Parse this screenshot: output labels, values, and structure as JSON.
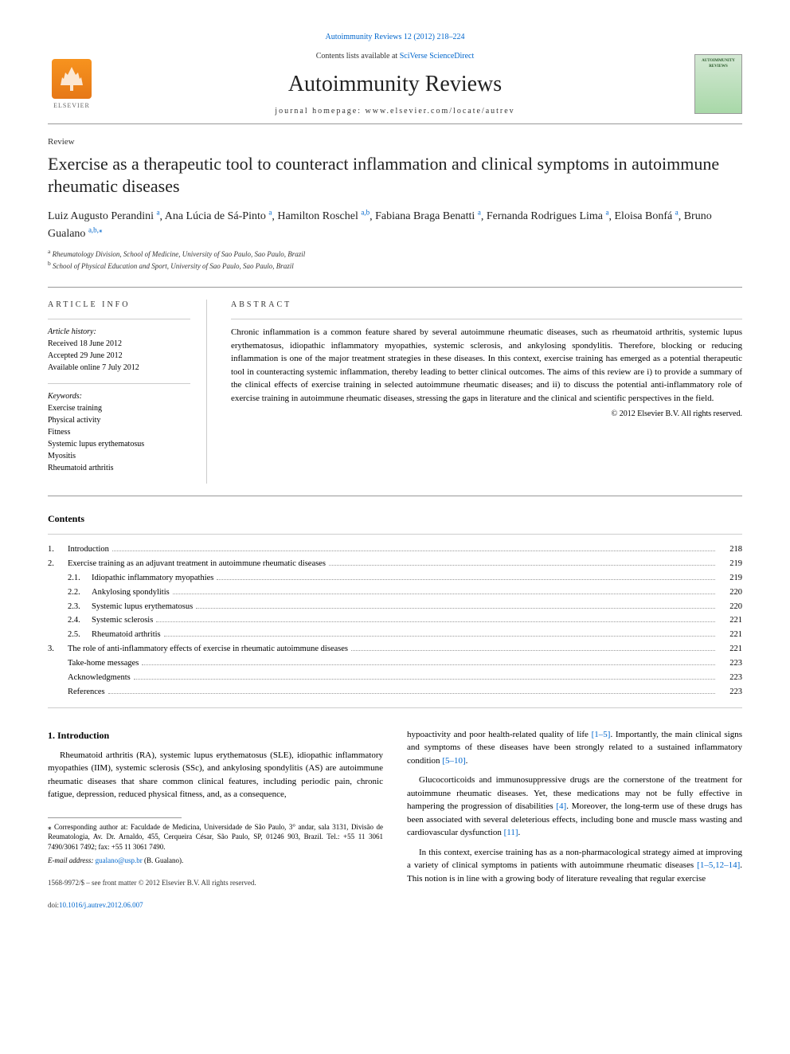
{
  "header": {
    "top_link": "Autoimmunity Reviews 12 (2012) 218–224",
    "contents_text": "Contents lists available at",
    "contents_link": "SciVerse ScienceDirect",
    "journal_name": "Autoimmunity Reviews",
    "homepage_label": "journal homepage: www.elsevier.com/locate/autrev",
    "publisher": "ELSEVIER",
    "cover_label": "AUTOIMMUNITY REVIEWS"
  },
  "article": {
    "type_label": "Review",
    "title": "Exercise as a therapeutic tool to counteract inflammation and clinical symptoms in autoimmune rheumatic diseases",
    "authors_html": [
      {
        "name": "Luiz Augusto Perandini",
        "aff": "a"
      },
      {
        "name": "Ana Lúcia de Sá-Pinto",
        "aff": "a"
      },
      {
        "name": "Hamilton Roschel",
        "aff": "a,b"
      },
      {
        "name": "Fabiana Braga Benatti",
        "aff": "a"
      },
      {
        "name": "Fernanda Rodrigues Lima",
        "aff": "a"
      },
      {
        "name": "Eloisa Bonfá",
        "aff": "a"
      },
      {
        "name": "Bruno Gualano",
        "aff": "a,b,",
        "star": true
      }
    ],
    "affiliations": [
      {
        "sup": "a",
        "text": "Rheumatology Division, School of Medicine, University of Sao Paulo, Sao Paulo, Brazil"
      },
      {
        "sup": "b",
        "text": "School of Physical Education and Sport, University of Sao Paulo, Sao Paulo, Brazil"
      }
    ]
  },
  "info": {
    "heading": "ARTICLE INFO",
    "history_label": "Article history:",
    "received": "Received 18 June 2012",
    "accepted": "Accepted 29 June 2012",
    "online": "Available online 7 July 2012",
    "keywords_label": "Keywords:",
    "keywords": [
      "Exercise training",
      "Physical activity",
      "Fitness",
      "Systemic lupus erythematosus",
      "Myositis",
      "Rheumatoid arthritis"
    ]
  },
  "abstract": {
    "heading": "ABSTRACT",
    "text": "Chronic inflammation is a common feature shared by several autoimmune rheumatic diseases, such as rheumatoid arthritis, systemic lupus erythematosus, idiopathic inflammatory myopathies, systemic sclerosis, and ankylosing spondylitis. Therefore, blocking or reducing inflammation is one of the major treatment strategies in these diseases. In this context, exercise training has emerged as a potential therapeutic tool in counteracting systemic inflammation, thereby leading to better clinical outcomes. The aims of this review are i) to provide a summary of the clinical effects of exercise training in selected autoimmune rheumatic diseases; and ii) to discuss the potential anti-inflammatory role of exercise training in autoimmune rheumatic diseases, stressing the gaps in literature and the clinical and scientific perspectives in the field.",
    "copyright": "© 2012 Elsevier B.V. All rights reserved."
  },
  "contents": {
    "heading": "Contents",
    "items": [
      {
        "num": "1.",
        "label": "Introduction",
        "page": "218",
        "indent": 0
      },
      {
        "num": "2.",
        "label": "Exercise training as an adjuvant treatment in autoimmune rheumatic diseases",
        "page": "219",
        "indent": 0
      },
      {
        "num": "2.1.",
        "label": "Idiopathic inflammatory myopathies",
        "page": "219",
        "indent": 1
      },
      {
        "num": "2.2.",
        "label": "Ankylosing spondylitis",
        "page": "220",
        "indent": 1
      },
      {
        "num": "2.3.",
        "label": "Systemic lupus erythematosus",
        "page": "220",
        "indent": 1
      },
      {
        "num": "2.4.",
        "label": "Systemic sclerosis",
        "page": "221",
        "indent": 1
      },
      {
        "num": "2.5.",
        "label": "Rheumatoid arthritis",
        "page": "221",
        "indent": 1
      },
      {
        "num": "3.",
        "label": "The role of anti-inflammatory effects of exercise in rheumatic autoimmune diseases",
        "page": "221",
        "indent": 0
      },
      {
        "num": "",
        "label": "Take-home messages",
        "page": "223",
        "indent": 0
      },
      {
        "num": "",
        "label": "Acknowledgments",
        "page": "223",
        "indent": 0
      },
      {
        "num": "",
        "label": "References",
        "page": "223",
        "indent": 0
      }
    ]
  },
  "intro": {
    "heading": "1. Introduction",
    "p1": "Rheumatoid arthritis (RA), systemic lupus erythematosus (SLE), idiopathic inflammatory myopathies (IIM), systemic sclerosis (SSc), and ankylosing spondylitis (AS) are autoimmune rheumatic diseases that share common clinical features, including periodic pain, chronic fatigue, depression, reduced physical fitness, and, as a consequence,",
    "p2a": "hypoactivity and poor health-related quality of life ",
    "ref1": "[1–5]",
    "p2b": ". Importantly, the main clinical signs and symptoms of these diseases have been strongly related to a sustained inflammatory condition ",
    "ref2": "[5–10]",
    "p2c": ".",
    "p3a": "Glucocorticoids and immunosuppressive drugs are the cornerstone of the treatment for autoimmune rheumatic diseases. Yet, these medications may not be fully effective in hampering the progression of disabilities ",
    "ref3": "[4]",
    "p3b": ". Moreover, the long-term use of these drugs has been associated with several deleterious effects, including bone and muscle mass wasting and cardiovascular dysfunction ",
    "ref4": "[11]",
    "p3c": ".",
    "p4a": "In this context, exercise training has as a non-pharmacological strategy aimed at improving a variety of clinical symptoms in patients with autoimmune rheumatic diseases ",
    "ref5": "[1–5,12–14]",
    "p4b": ". This notion is in line with a growing body of literature revealing that regular exercise"
  },
  "footnote": {
    "star_label": "⁎",
    "corr_text": "Corresponding author at: Faculdade de Medicina, Universidade de São Paulo, 3° andar, sala 3131, Divisão de Reumatologia, Av. Dr. Arnaldo, 455, Cerqueira César, São Paulo, SP, 01246 903, Brazil. Tel.: +55 11 3061 7490/3061 7492; fax: +55 11 3061 7490.",
    "email_label": "E-mail address:",
    "email": "gualano@usp.br",
    "email_author": "(B. Gualano)."
  },
  "footer": {
    "issn": "1568-9972/$ – see front matter © 2012 Elsevier B.V. All rights reserved.",
    "doi_label": "doi:",
    "doi": "10.1016/j.autrev.2012.06.007"
  },
  "colors": {
    "link": "#0066cc",
    "text": "#000000",
    "border": "#999999"
  }
}
